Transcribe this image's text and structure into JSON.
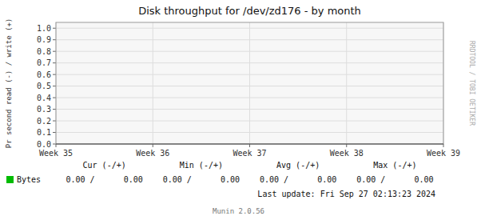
{
  "chart_data": {
    "type": "line",
    "title": "Disk throughput for /dev/zd176 - by month",
    "y_label": "Pr second read (-) / write (+)",
    "categories": [
      "Week 35",
      "Week 36",
      "Week 37",
      "Week 38",
      "Week 39"
    ],
    "series": [
      {
        "name": "Bytes",
        "color": "#00bb00"
      }
    ],
    "ylim": [
      0.0,
      1.05
    ],
    "yticks": [
      {
        "value": 0.0,
        "label": "0.0"
      },
      0.1,
      0.2,
      0.3,
      0.4,
      0.5,
      0.6,
      0.7,
      0.8,
      0.9,
      {
        "value": 1.0,
        "label": "1.0"
      }
    ],
    "grid": true,
    "legend": "bottom",
    "annotations": [
      "Cur (-/+)",
      "Min (-/+)",
      "Avg (-/+)",
      "Max (-/+)",
      "0.00 /      0.00",
      "0.00 /      0.00",
      "0.00 /      0.00",
      "0.00 /      0.00",
      "Last update: Fri Sep 27 02:13:23 2024",
      "Munin 2.0.56",
      "RRDTOOL / TOBI OETIKER"
    ]
  }
}
